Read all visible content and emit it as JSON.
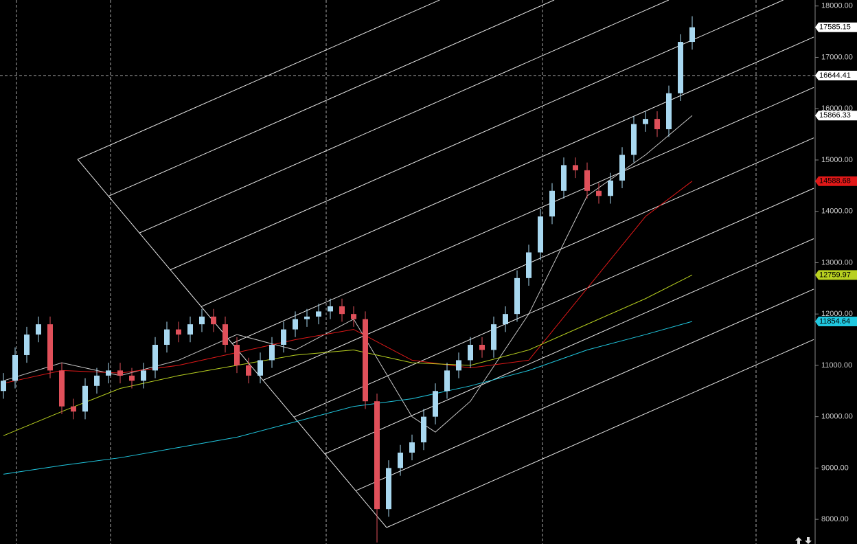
{
  "chart_data": {
    "type": "candlestick",
    "open": [
      10500,
      10700,
      11200,
      11600,
      11800,
      10900,
      10200,
      10100,
      10600,
      10800,
      10900,
      10800,
      10700,
      10900,
      11400,
      11700,
      11600,
      11800,
      11950,
      11800,
      11400,
      11000,
      10800,
      11100,
      11400,
      11700,
      11900,
      11950,
      12050,
      12150,
      12000,
      11900,
      10300,
      8200,
      9000,
      9300,
      9500,
      10000,
      10500,
      10900,
      11100,
      11400,
      11300,
      11800,
      12000,
      12700,
      13200,
      13900,
      14400,
      14900,
      14800,
      14400,
      14300,
      14600,
      15100,
      15700,
      15800,
      15600,
      16300,
      17300
    ],
    "high": [
      10850,
      11350,
      11750,
      11950,
      11950,
      11050,
      10350,
      10750,
      10950,
      11050,
      11050,
      10950,
      11050,
      11550,
      11850,
      11850,
      11950,
      12100,
      12100,
      11950,
      11550,
      11150,
      11250,
      11550,
      11850,
      12050,
      12100,
      12200,
      12300,
      12300,
      12150,
      12050,
      10450,
      9150,
      9450,
      9650,
      10150,
      10650,
      11050,
      11250,
      11550,
      11550,
      11950,
      12150,
      12850,
      13350,
      14050,
      14550,
      15050,
      15050,
      14950,
      14550,
      14750,
      15250,
      15850,
      15950,
      15950,
      16450,
      17450,
      17800
    ],
    "low": [
      10350,
      10550,
      11050,
      11450,
      10750,
      10050,
      9950,
      9950,
      10450,
      10650,
      10650,
      10550,
      10550,
      10750,
      11250,
      11450,
      11450,
      11650,
      11650,
      11250,
      10850,
      10650,
      10650,
      10950,
      11250,
      11550,
      11750,
      11800,
      11900,
      11850,
      11750,
      10150,
      7550,
      8050,
      8850,
      9150,
      9350,
      9850,
      10350,
      10750,
      10950,
      11150,
      11150,
      11650,
      11850,
      12550,
      13050,
      13750,
      14250,
      14650,
      14250,
      14150,
      14150,
      14450,
      14950,
      15550,
      15450,
      15450,
      16150,
      17150
    ],
    "close": [
      10700,
      11200,
      11600,
      11800,
      10900,
      10200,
      10100,
      10600,
      10800,
      10900,
      10800,
      10700,
      10900,
      11400,
      11700,
      11600,
      11800,
      11950,
      11800,
      11400,
      11000,
      10800,
      11100,
      11400,
      11700,
      11900,
      11950,
      12050,
      12150,
      12000,
      11900,
      10300,
      8200,
      9000,
      9300,
      9500,
      10000,
      10500,
      10900,
      11100,
      11400,
      11300,
      11800,
      12000,
      12700,
      13200,
      13900,
      14400,
      14900,
      14800,
      14400,
      14300,
      14600,
      15100,
      15700,
      15800,
      15600,
      16300,
      17300,
      17585.15
    ],
    "up_color": "#a8d8f0",
    "down_color": "#e0505a",
    "series": [
      {
        "color": "#c8c8c8",
        "x": [
          0,
          5,
          10,
          15,
          20,
          25,
          30,
          35,
          37,
          40,
          45,
          50,
          55,
          59
        ],
        "values": [
          10700,
          11050,
          10800,
          11100,
          11600,
          11300,
          11900,
          10000,
          9700,
          10300,
          12000,
          14300,
          15100,
          15866.33
        ]
      },
      {
        "color": "#e01818",
        "x": [
          0,
          5,
          10,
          15,
          20,
          25,
          30,
          35,
          40,
          45,
          50,
          55,
          59
        ],
        "values": [
          10650,
          10900,
          10850,
          11000,
          11250,
          11500,
          11700,
          11100,
          10950,
          11100,
          12500,
          13900,
          14588.68
        ]
      },
      {
        "color": "#b8d020",
        "x": [
          0,
          5,
          10,
          15,
          20,
          25,
          30,
          35,
          40,
          45,
          50,
          55,
          59
        ],
        "values": [
          9630,
          10100,
          10550,
          10800,
          11000,
          11200,
          11300,
          11050,
          11000,
          11300,
          11800,
          12300,
          12759.97
        ]
      },
      {
        "color": "#20c8e0",
        "x": [
          0,
          5,
          10,
          15,
          20,
          25,
          30,
          35,
          40,
          45,
          50,
          55,
          59
        ],
        "values": [
          8880,
          9050,
          9200,
          9400,
          9600,
          9900,
          10200,
          10350,
          10600,
          10900,
          11300,
          11600,
          11854.64
        ]
      }
    ],
    "ylim": [
      7520,
      18090
    ],
    "yticks": [
      {
        "value": 8000,
        "label": "8000.00"
      },
      {
        "value": 9000,
        "label": "9000.00"
      },
      {
        "value": 10000,
        "label": "10000.00"
      },
      {
        "value": 11000,
        "label": "11000.00"
      },
      {
        "value": 12000,
        "label": "12000.00"
      },
      {
        "value": 13000,
        "label": "13000.00"
      },
      {
        "value": 14000,
        "label": "14000.00"
      },
      {
        "value": 15000,
        "label": "15000.00"
      },
      {
        "value": 16000,
        "label": "16000.00"
      },
      {
        "value": 17000,
        "label": "17000.00"
      },
      {
        "value": 18000,
        "label": "18000.00"
      }
    ],
    "crosshair": 16644.41,
    "price_tags": [
      {
        "value": 17585.15,
        "color": "#ffffff"
      },
      {
        "value": 16644.41,
        "color": "#ffffff"
      },
      {
        "value": 15866.33,
        "color": "#ffffff"
      },
      {
        "value": 14588.68,
        "color": "#e01818"
      },
      {
        "value": 12759.97,
        "color": "#b8d020"
      },
      {
        "value": 11854.64,
        "color": "#20c8e0"
      }
    ]
  }
}
